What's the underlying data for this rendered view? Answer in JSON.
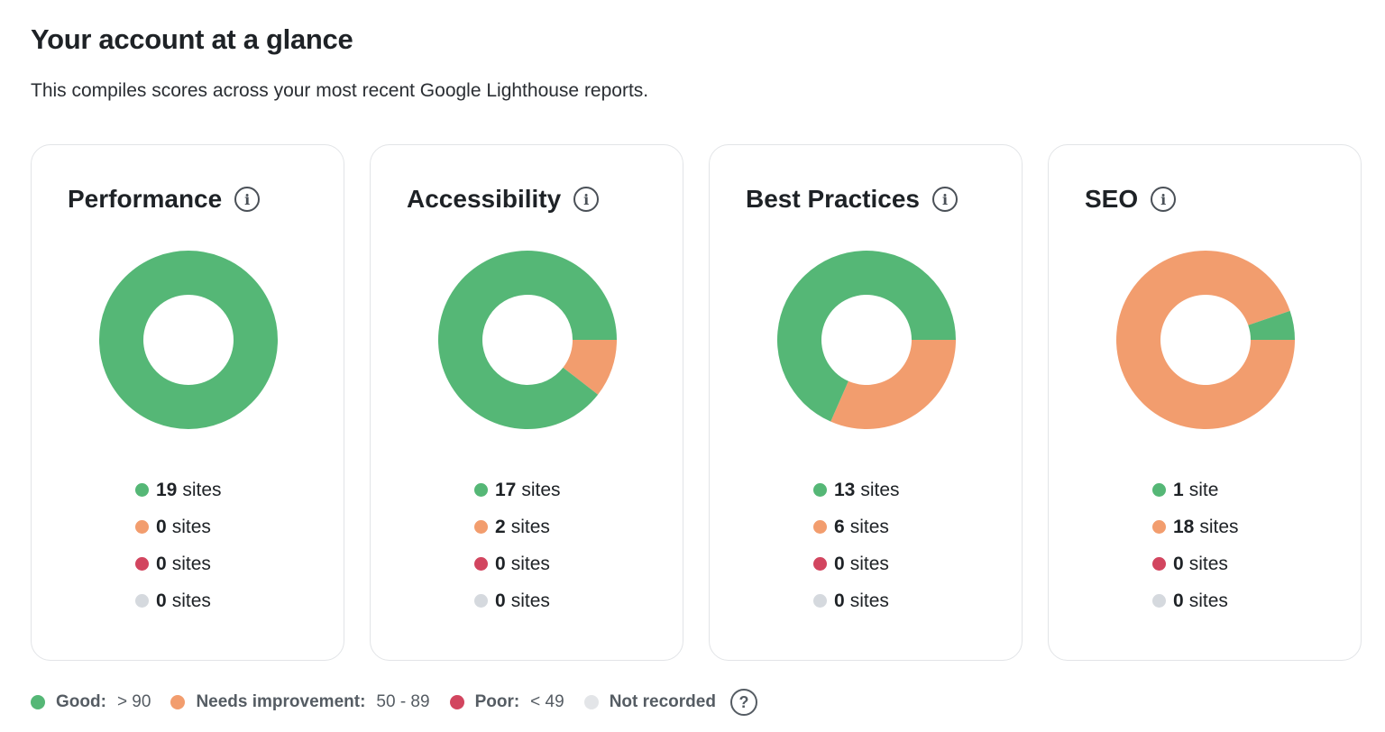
{
  "header": {
    "title": "Your account at a glance",
    "subtitle": "This compiles scores across your most recent Google Lighthouse reports."
  },
  "colors": {
    "good": "#55b776",
    "needs_improvement": "#f29d6e",
    "poor": "#d2455f",
    "not_recorded": "#d5d9de"
  },
  "cards": [
    {
      "title": "Performance",
      "icon": "info-icon",
      "counts": {
        "good": 19,
        "needs_improvement": 0,
        "poor": 0,
        "not_recorded": 0
      },
      "labels": [
        {
          "n": "19",
          "u": "sites"
        },
        {
          "n": "0",
          "u": "sites"
        },
        {
          "n": "0",
          "u": "sites"
        },
        {
          "n": "0",
          "u": "sites"
        }
      ]
    },
    {
      "title": "Accessibility",
      "icon": "info-icon",
      "counts": {
        "good": 17,
        "needs_improvement": 2,
        "poor": 0,
        "not_recorded": 0
      },
      "labels": [
        {
          "n": "17",
          "u": "sites"
        },
        {
          "n": "2",
          "u": "sites"
        },
        {
          "n": "0",
          "u": "sites"
        },
        {
          "n": "0",
          "u": "sites"
        }
      ]
    },
    {
      "title": "Best Practices",
      "icon": "info-icon",
      "counts": {
        "good": 13,
        "needs_improvement": 6,
        "poor": 0,
        "not_recorded": 0
      },
      "labels": [
        {
          "n": "13",
          "u": "sites"
        },
        {
          "n": "6",
          "u": "sites"
        },
        {
          "n": "0",
          "u": "sites"
        },
        {
          "n": "0",
          "u": "sites"
        }
      ]
    },
    {
      "title": "SEO",
      "icon": "info-icon",
      "counts": {
        "good": 1,
        "needs_improvement": 18,
        "poor": 0,
        "not_recorded": 0
      },
      "labels": [
        {
          "n": "1",
          "u": "site"
        },
        {
          "n": "18",
          "u": "sites"
        },
        {
          "n": "0",
          "u": "sites"
        },
        {
          "n": "0",
          "u": "sites"
        }
      ]
    }
  ],
  "legend": [
    {
      "label": "Good:",
      "range": "> 90"
    },
    {
      "label": "Needs improvement:",
      "range": "50 - 89"
    },
    {
      "label": "Poor:",
      "range": "< 49"
    },
    {
      "label": "Not recorded",
      "range": ""
    }
  ],
  "help_icon": "question-icon"
}
